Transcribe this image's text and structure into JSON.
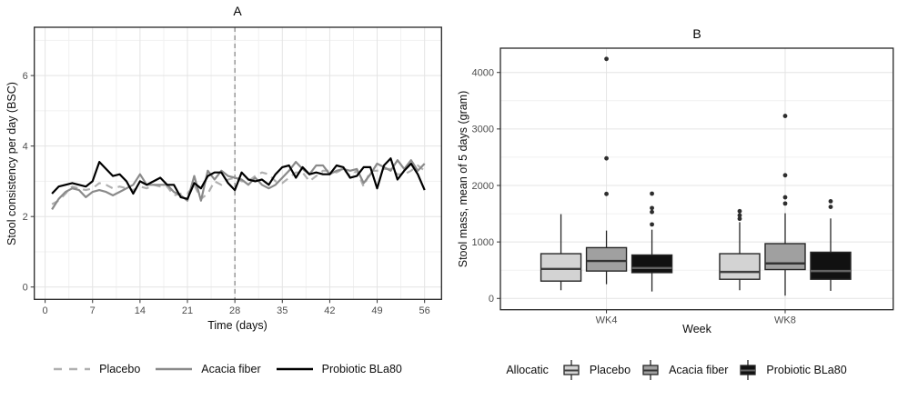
{
  "chart_data": [
    {
      "type": "line",
      "panel": "A",
      "title": "A",
      "xlabel": "Time (days)",
      "ylabel": "Stool consistency per day (BSC)",
      "xticks": [
        0,
        7,
        14,
        21,
        28,
        35,
        42,
        49,
        56
      ],
      "yticks": [
        0,
        2,
        4,
        6
      ],
      "yticks_minor": [
        1,
        3,
        5,
        7
      ],
      "xlim": [
        -1.6,
        58.5
      ],
      "ylim": [
        -0.35,
        7.37
      ],
      "grid": true,
      "legend_position": "bottom",
      "vline": {
        "x": 28,
        "style": "dashed",
        "color": "#808080"
      },
      "x": [
        1,
        2,
        3,
        4,
        5,
        6,
        7,
        8,
        9,
        10,
        11,
        12,
        13,
        14,
        15,
        16,
        17,
        18,
        19,
        20,
        21,
        22,
        23,
        24,
        25,
        26,
        27,
        28,
        29,
        30,
        31,
        32,
        33,
        34,
        35,
        36,
        37,
        38,
        39,
        40,
        41,
        42,
        43,
        44,
        45,
        46,
        47,
        48,
        49,
        50,
        51,
        52,
        53,
        54,
        55,
        56
      ],
      "series": [
        {
          "name": "Placebo",
          "color": "#b0b0b0",
          "dash": "8,6",
          "values": [
            2.35,
            2.45,
            2.65,
            2.85,
            2.8,
            2.75,
            2.8,
            2.95,
            2.9,
            2.8,
            2.85,
            2.8,
            2.75,
            2.85,
            2.8,
            2.9,
            2.85,
            2.85,
            2.6,
            2.65,
            2.65,
            2.9,
            2.5,
            2.65,
            3.0,
            2.9,
            3.05,
            3.1,
            3.0,
            3.0,
            3.15,
            3.25,
            3.2,
            3.0,
            2.95,
            3.1,
            3.25,
            3.25,
            3.0,
            3.15,
            3.3,
            3.3,
            3.25,
            3.35,
            3.15,
            3.3,
            2.85,
            3.3,
            3.3,
            3.35,
            3.35,
            3.2,
            3.2,
            3.3,
            3.45,
            3.3
          ]
        },
        {
          "name": "Acacia fiber",
          "color": "#8a8a8a",
          "dash": null,
          "values": [
            2.2,
            2.5,
            2.7,
            2.8,
            2.75,
            2.55,
            2.7,
            2.75,
            2.7,
            2.6,
            2.7,
            2.8,
            2.9,
            3.2,
            2.9,
            2.9,
            2.9,
            2.9,
            2.7,
            2.6,
            2.45,
            3.15,
            2.45,
            3.3,
            3.05,
            3.3,
            3.15,
            3.1,
            3.05,
            2.9,
            3.1,
            2.9,
            2.8,
            2.9,
            3.1,
            3.3,
            3.55,
            3.35,
            3.2,
            3.45,
            3.45,
            3.2,
            3.3,
            3.35,
            3.3,
            3.35,
            2.95,
            3.2,
            3.5,
            3.4,
            3.3,
            3.6,
            3.35,
            3.6,
            3.3,
            3.5
          ]
        },
        {
          "name": "Probiotic BLa80",
          "color": "#000000",
          "dash": null,
          "values": [
            2.65,
            2.85,
            2.9,
            2.95,
            2.9,
            2.85,
            3.0,
            3.55,
            3.35,
            3.15,
            3.2,
            3.0,
            2.65,
            3.0,
            2.9,
            3.0,
            3.1,
            2.9,
            2.9,
            2.55,
            2.5,
            2.95,
            2.8,
            3.15,
            3.25,
            3.25,
            2.95,
            2.75,
            3.25,
            3.05,
            3.0,
            3.05,
            2.9,
            3.2,
            3.4,
            3.45,
            3.1,
            3.4,
            3.2,
            3.25,
            3.2,
            3.2,
            3.45,
            3.4,
            3.1,
            3.15,
            3.4,
            3.4,
            2.8,
            3.45,
            3.65,
            3.05,
            3.3,
            3.5,
            3.2,
            2.75
          ]
        }
      ]
    },
    {
      "type": "boxplot",
      "panel": "B",
      "title": "B",
      "xlabel": "Week",
      "ylabel": "Stool mass, mean of 5 days (gram)",
      "categories": [
        "WK4",
        "WK8"
      ],
      "category_pos": [
        0.27,
        0.725
      ],
      "yticks": [
        0,
        1000,
        2000,
        3000,
        4000
      ],
      "yticks_minor": [
        500,
        1500,
        2500,
        3500
      ],
      "ylim": [
        -200,
        4430
      ],
      "legend_title": "Allocatic",
      "legend_position": "bottom",
      "series": [
        {
          "name": "Placebo",
          "fill": "#d3d3d3",
          "median_color": "#3f3f3f",
          "boxes": [
            {
              "group": "WK4",
              "whisker_low": 145,
              "q1": 307,
              "median": 522,
              "q3": 792,
              "whisker_high": 1492,
              "outliers": []
            },
            {
              "group": "WK8",
              "whisker_low": 145,
              "q1": 339,
              "median": 469,
              "q3": 792,
              "whisker_high": 1350,
              "outliers": [
                1410,
                1470,
                1545
              ]
            }
          ]
        },
        {
          "name": "Acacia fiber",
          "fill": "#a0a0a0",
          "median_color": "#333333",
          "boxes": [
            {
              "group": "WK4",
              "whisker_low": 252,
              "q1": 485,
              "median": 663,
              "q3": 899,
              "whisker_high": 1201,
              "outliers": [
                1850,
                2480,
                4240
              ]
            },
            {
              "group": "WK8",
              "whisker_low": 50,
              "q1": 511,
              "median": 620,
              "q3": 970,
              "whisker_high": 1508,
              "outliers": [
                1680,
                1790,
                2180,
                3230
              ]
            }
          ]
        },
        {
          "name": "Probiotic BLa80",
          "fill": "#111111",
          "median_color": "#636363",
          "boxes": [
            {
              "group": "WK4",
              "whisker_low": 123,
              "q1": 457,
              "median": 538,
              "q3": 769,
              "whisker_high": 1217,
              "outliers": [
                1310,
                1530,
                1600,
                1855
              ]
            },
            {
              "group": "WK8",
              "whisker_low": 134,
              "q1": 339,
              "median": 485,
              "q3": 818,
              "whisker_high": 1416,
              "outliers": [
                1620,
                1720
              ]
            }
          ]
        }
      ]
    }
  ],
  "style": {
    "panel_border": "#262626",
    "grid_major": "#e4e4e4",
    "grid_minor": "#f1f1f1",
    "tick_mark": "#333333",
    "tick_text": "#4d4d4d",
    "outlier": "#2e2e2e"
  }
}
